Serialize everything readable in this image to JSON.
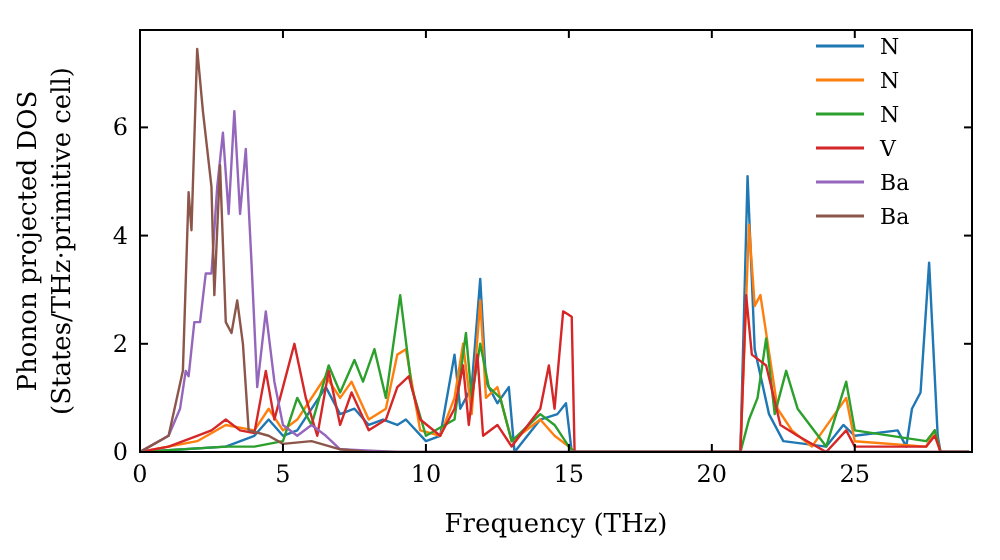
{
  "chart_data": {
    "type": "line",
    "xlabel": "Frequency (THz)",
    "ylabel": "Phonon projected DOS\n(States/THz·primitive cell)",
    "xlim": [
      0,
      29.1
    ],
    "ylim": [
      0,
      7.8
    ],
    "xticks": [
      0,
      5,
      10,
      15,
      20,
      25
    ],
    "yticks": [
      0,
      2,
      4,
      6
    ],
    "grid": false,
    "legend": "top right",
    "marker": "none",
    "line_style": "solid",
    "series": [
      {
        "name": "N",
        "color": "#1f77b4",
        "x": [
          0,
          3,
          4,
          4.5,
          5,
          5.5,
          6.5,
          7,
          7.5,
          8,
          8.5,
          9,
          9.3,
          10,
          10.5,
          11,
          11.2,
          11.6,
          11.9,
          12.1,
          12.5,
          12.9,
          13.1,
          14,
          14.6,
          14.9,
          15.1,
          21,
          21.25,
          21.5,
          22,
          22.5,
          24,
          24.6,
          25,
          26.5,
          26.8,
          27,
          27.3,
          27.6,
          27.9,
          28,
          29
        ],
        "values": [
          0,
          0.1,
          0.3,
          0.6,
          0.3,
          0.4,
          1.2,
          0.7,
          0.8,
          0.5,
          0.6,
          0.5,
          0.6,
          0.2,
          0.3,
          1.8,
          0.8,
          1.2,
          3.2,
          1.3,
          0.9,
          1.2,
          0,
          0.6,
          0.7,
          0.9,
          0,
          0,
          5.1,
          1.9,
          0.7,
          0.2,
          0.1,
          0.5,
          0.3,
          0.4,
          0.1,
          0.8,
          1.1,
          3.5,
          0.3,
          0,
          0
        ]
      },
      {
        "name": "N",
        "color": "#ff7f0e",
        "x": [
          0,
          2,
          3,
          4,
          4.5,
          5,
          5.5,
          6.5,
          7,
          7.4,
          8,
          8.6,
          9,
          9.3,
          9.8,
          10.5,
          11,
          11.3,
          11.6,
          11.9,
          12.1,
          12.5,
          13,
          14,
          14.5,
          15,
          15.2,
          21,
          21.3,
          21.5,
          21.7,
          22.3,
          22.8,
          23.5,
          24.7,
          25,
          27.5,
          27.8,
          28,
          29
        ],
        "values": [
          0,
          0.2,
          0.5,
          0.4,
          0.8,
          0.4,
          0.6,
          1.4,
          1,
          1.3,
          0.6,
          0.8,
          1.8,
          1.9,
          0.4,
          0.3,
          1,
          2,
          0.7,
          2.8,
          1,
          1.2,
          0.2,
          0.6,
          0.3,
          0.1,
          0,
          0,
          4.2,
          2.7,
          2.9,
          0.8,
          0.4,
          0.1,
          1,
          0.2,
          0.1,
          0.4,
          0,
          0
        ]
      },
      {
        "name": "N",
        "color": "#2ca02c",
        "x": [
          0,
          3,
          4,
          5,
          5.5,
          6,
          6.6,
          7,
          7.5,
          7.8,
          8.2,
          8.6,
          9.1,
          9.5,
          10,
          11,
          11.4,
          11.6,
          11.9,
          12.2,
          12.6,
          13,
          14,
          14.5,
          15,
          15.2,
          21,
          21.3,
          21.6,
          21.9,
          22.2,
          22.6,
          23,
          24,
          24.7,
          25,
          27.5,
          27.8,
          28,
          29
        ],
        "values": [
          0,
          0.1,
          0.1,
          0.2,
          1,
          0.5,
          1.6,
          1.1,
          1.7,
          1.3,
          1.9,
          1,
          2.9,
          1.2,
          0.3,
          0.6,
          2.2,
          1,
          2,
          1.2,
          1,
          0.2,
          0.7,
          0.5,
          0.1,
          0,
          0,
          0.6,
          1,
          2.1,
          0.7,
          1.5,
          0.8,
          0.1,
          1.3,
          0.4,
          0.2,
          0.4,
          0,
          0
        ]
      },
      {
        "name": "V",
        "color": "#d62728",
        "x": [
          0,
          1,
          2,
          2.5,
          3,
          3.5,
          4,
          4.4,
          4.7,
          5,
          5.4,
          5.8,
          6.2,
          6.6,
          7,
          7.4,
          8,
          8.6,
          9,
          9.4,
          9.8,
          10.5,
          11,
          11.3,
          11.5,
          11.8,
          12,
          12.5,
          13,
          14,
          14.3,
          14.5,
          14.8,
          15.1,
          15.2,
          21,
          21.2,
          21.4,
          21.9,
          22.4,
          23,
          24,
          24.7,
          25,
          27.5,
          27.8,
          28,
          29
        ],
        "values": [
          0,
          0.1,
          0.3,
          0.4,
          0.6,
          0.4,
          0.35,
          1.5,
          0.6,
          1.2,
          2,
          1,
          0.3,
          1.5,
          0.5,
          1.1,
          0.4,
          0.6,
          1.2,
          1.4,
          0.6,
          0.3,
          0.8,
          1.6,
          0.5,
          1.8,
          0.3,
          0.5,
          0.1,
          0.8,
          1.6,
          0.8,
          2.6,
          2.5,
          0,
          0,
          2.9,
          1.8,
          1.6,
          0.5,
          0.3,
          0,
          0.4,
          0.1,
          0.1,
          0.3,
          0,
          0
        ]
      },
      {
        "name": "Ba",
        "color": "#9467bd",
        "x": [
          0,
          1,
          1.4,
          1.6,
          1.7,
          1.9,
          2.1,
          2.3,
          2.5,
          2.7,
          2.9,
          3.1,
          3.3,
          3.5,
          3.7,
          3.9,
          4.1,
          4.4,
          4.7,
          5,
          5.5,
          6,
          6.5,
          7,
          9,
          29
        ],
        "values": [
          0,
          0.3,
          0.8,
          1.5,
          1.4,
          2.4,
          2.4,
          3.3,
          3.3,
          4.9,
          5.9,
          4.4,
          6.3,
          4.4,
          5.6,
          3.5,
          1.2,
          2.6,
          1.3,
          0.5,
          0.3,
          0.5,
          0.3,
          0.05,
          0,
          0
        ]
      },
      {
        "name": "Ba",
        "color": "#8c564b",
        "x": [
          0,
          1,
          1.5,
          1.7,
          1.8,
          2,
          2.2,
          2.5,
          2.6,
          2.8,
          3,
          3.2,
          3.4,
          3.6,
          3.8,
          4.5,
          5,
          6,
          7,
          8,
          29
        ],
        "values": [
          0,
          0.3,
          1.5,
          4.8,
          4.1,
          7.45,
          6.3,
          4.9,
          2.9,
          5.3,
          2.4,
          2.2,
          2.8,
          2,
          0.4,
          0.3,
          0.15,
          0.2,
          0.05,
          0,
          0
        ]
      }
    ]
  }
}
